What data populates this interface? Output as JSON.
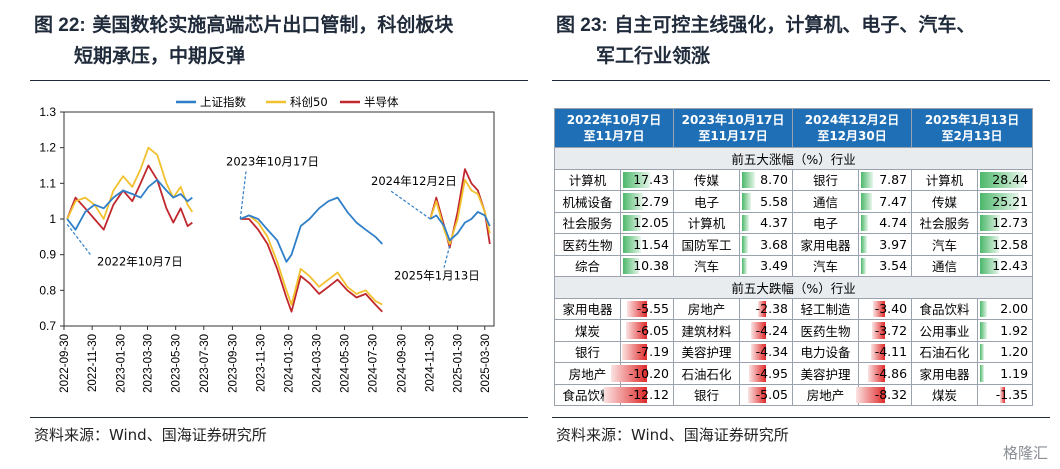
{
  "left": {
    "fig_label": "图 22:",
    "title_line1": "美国数轮实施高端芯片出口管制，科创板块",
    "title_line2": "短期承压，中期反弹",
    "source": "资料来源：Wind、国海证券研究所"
  },
  "right": {
    "fig_label": "图 23:",
    "title_line1": "自主可控主线强化，计算机、电子、汽车、",
    "title_line2": "军工行业领涨",
    "source": "资料来源：Wind、国海证券研究所"
  },
  "watermark": "格隆汇",
  "chart_data": [
    {
      "type": "line",
      "title": "",
      "legend": [
        "上证指数",
        "科创50",
        "半导体"
      ],
      "legend_placement": "top",
      "colors": {
        "上证指数": "#2f7fc8",
        "科创50": "#f2c12e",
        "半导体": "#c0282d"
      },
      "ylim": [
        0.7,
        1.3
      ],
      "yticks": [
        "0.7",
        "0.8",
        "0.9",
        "1",
        "1.1",
        "1.2",
        "1.3"
      ],
      "xticks": [
        "2022-09-30",
        "2022-11-30",
        "2023-01-30",
        "2023-03-30",
        "2023-05-30",
        "2023-07-30",
        "2023-09-30",
        "2023-11-30",
        "2024-01-30",
        "2024-03-30",
        "2024-05-30",
        "2024-07-30",
        "2024-09-30",
        "2024-11-30",
        "2025-01-30",
        "2025-03-30"
      ],
      "annotations": [
        "2022年10月7日",
        "2023年10月17日",
        "2024年12月2日",
        "2025年1月13日"
      ],
      "segments": [
        {
          "start": "2022-10-07",
          "x": [
            "2022-10-07",
            "2022-10-25",
            "2022-11-15",
            "2022-12-05",
            "2022-12-25",
            "2023-01-15",
            "2023-02-05",
            "2023-02-25",
            "2023-03-15",
            "2023-04-01",
            "2023-04-20",
            "2023-05-10",
            "2023-05-25",
            "2023-06-10",
            "2023-06-25",
            "2023-07-05"
          ],
          "series": [
            {
              "name": "上证指数",
              "values": [
                1.0,
                0.97,
                1.02,
                1.04,
                1.03,
                1.06,
                1.08,
                1.07,
                1.06,
                1.09,
                1.11,
                1.08,
                1.06,
                1.07,
                1.05,
                1.06
              ]
            },
            {
              "name": "科创50",
              "values": [
                1.0,
                1.05,
                1.06,
                1.04,
                1.0,
                1.08,
                1.12,
                1.09,
                1.14,
                1.2,
                1.18,
                1.1,
                1.06,
                1.09,
                1.04,
                1.02
              ]
            },
            {
              "name": "半导体",
              "values": [
                1.0,
                1.06,
                1.03,
                1.0,
                0.97,
                1.04,
                1.08,
                1.05,
                1.1,
                1.15,
                1.11,
                1.03,
                0.99,
                1.03,
                0.98,
                0.99
              ]
            }
          ]
        },
        {
          "start": "2023-10-17",
          "x": [
            "2023-10-17",
            "2023-11-05",
            "2023-11-25",
            "2023-12-15",
            "2024-01-05",
            "2024-01-25",
            "2024-02-05",
            "2024-02-25",
            "2024-03-15",
            "2024-04-05",
            "2024-04-25",
            "2024-05-15",
            "2024-06-05",
            "2024-06-25",
            "2024-07-15",
            "2024-08-05",
            "2024-08-20"
          ],
          "series": [
            {
              "name": "上证指数",
              "values": [
                1.0,
                1.01,
                1.0,
                0.97,
                0.94,
                0.88,
                0.9,
                0.98,
                1.0,
                1.03,
                1.05,
                1.06,
                1.02,
                0.99,
                0.97,
                0.95,
                0.93
              ]
            },
            {
              "name": "科创50",
              "values": [
                1.0,
                1.01,
                0.99,
                0.95,
                0.88,
                0.8,
                0.76,
                0.86,
                0.84,
                0.81,
                0.83,
                0.85,
                0.81,
                0.79,
                0.8,
                0.77,
                0.76
              ]
            },
            {
              "name": "半导体",
              "values": [
                1.0,
                1.0,
                0.97,
                0.93,
                0.86,
                0.78,
                0.74,
                0.84,
                0.82,
                0.79,
                0.81,
                0.83,
                0.8,
                0.78,
                0.79,
                0.76,
                0.74
              ]
            }
          ]
        },
        {
          "start": "2024-12-02",
          "x": [
            "2024-12-02",
            "2024-12-15",
            "2025-01-01",
            "2025-01-13",
            "2025-01-30",
            "2025-02-15",
            "2025-03-01",
            "2025-03-15",
            "2025-03-30",
            "2025-04-10"
          ],
          "series": [
            {
              "name": "上证指数",
              "values": [
                1.0,
                1.01,
                0.98,
                0.94,
                0.96,
                0.99,
                1.0,
                1.02,
                1.01,
                0.98
              ]
            },
            {
              "name": "科创50",
              "values": [
                1.0,
                1.05,
                0.97,
                0.93,
                1.0,
                1.11,
                1.08,
                1.07,
                1.02,
                0.96
              ]
            },
            {
              "name": "半导体",
              "values": [
                1.0,
                1.06,
                0.98,
                0.92,
                1.02,
                1.14,
                1.1,
                1.08,
                1.02,
                0.93
              ]
            }
          ]
        }
      ]
    },
    {
      "type": "table",
      "headers": [
        "2022年10月7日\n至11月7日",
        "2023年10月17日\n至11月17日",
        "2024年12月2日\n至12月30日",
        "2025年1月13日\n至2月13日"
      ],
      "sections": [
        {
          "label": "前五大涨幅（%）行业",
          "kind": "gain",
          "rows": [
            [
              [
                "计算机",
                "17.43"
              ],
              [
                "传媒",
                "8.70"
              ],
              [
                "银行",
                "7.87"
              ],
              [
                "计算机",
                "28.44"
              ]
            ],
            [
              [
                "机械设备",
                "12.79"
              ],
              [
                "电子",
                "5.58"
              ],
              [
                "通信",
                "7.47"
              ],
              [
                "传媒",
                "25.21"
              ]
            ],
            [
              [
                "社会服务",
                "12.05"
              ],
              [
                "计算机",
                "4.37"
              ],
              [
                "电子",
                "4.74"
              ],
              [
                "社会服务",
                "12.73"
              ]
            ],
            [
              [
                "医药生物",
                "11.54"
              ],
              [
                "国防军工",
                "3.68"
              ],
              [
                "家用电器",
                "3.97"
              ],
              [
                "汽车",
                "12.58"
              ]
            ],
            [
              [
                "综合",
                "10.38"
              ],
              [
                "汽车",
                "3.49"
              ],
              [
                "汽车",
                "3.54"
              ],
              [
                "通信",
                "12.43"
              ]
            ]
          ]
        },
        {
          "label": "前五大跌幅（%）行业",
          "kind": "loss",
          "rows": [
            [
              [
                "家用电器",
                "-5.55"
              ],
              [
                "房地产",
                "-2.38"
              ],
              [
                "轻工制造",
                "-3.40"
              ],
              [
                "食品饮料",
                "2.00"
              ]
            ],
            [
              [
                "煤炭",
                "-6.05"
              ],
              [
                "建筑材料",
                "-4.24"
              ],
              [
                "医药生物",
                "-3.72"
              ],
              [
                "公用事业",
                "1.92"
              ]
            ],
            [
              [
                "银行",
                "-7.19"
              ],
              [
                "美容护理",
                "-4.34"
              ],
              [
                "电力设备",
                "-4.11"
              ],
              [
                "石油石化",
                "1.20"
              ]
            ],
            [
              [
                "房地产",
                "-10.20"
              ],
              [
                "石油石化",
                "-4.95"
              ],
              [
                "美容护理",
                "-4.86"
              ],
              [
                "家用电器",
                "1.19"
              ]
            ],
            [
              [
                "食品饮料",
                "-12.12"
              ],
              [
                "银行",
                "-5.05"
              ],
              [
                "房地产",
                "-8.32"
              ],
              [
                "煤炭",
                "-1.35"
              ]
            ]
          ]
        }
      ]
    }
  ]
}
